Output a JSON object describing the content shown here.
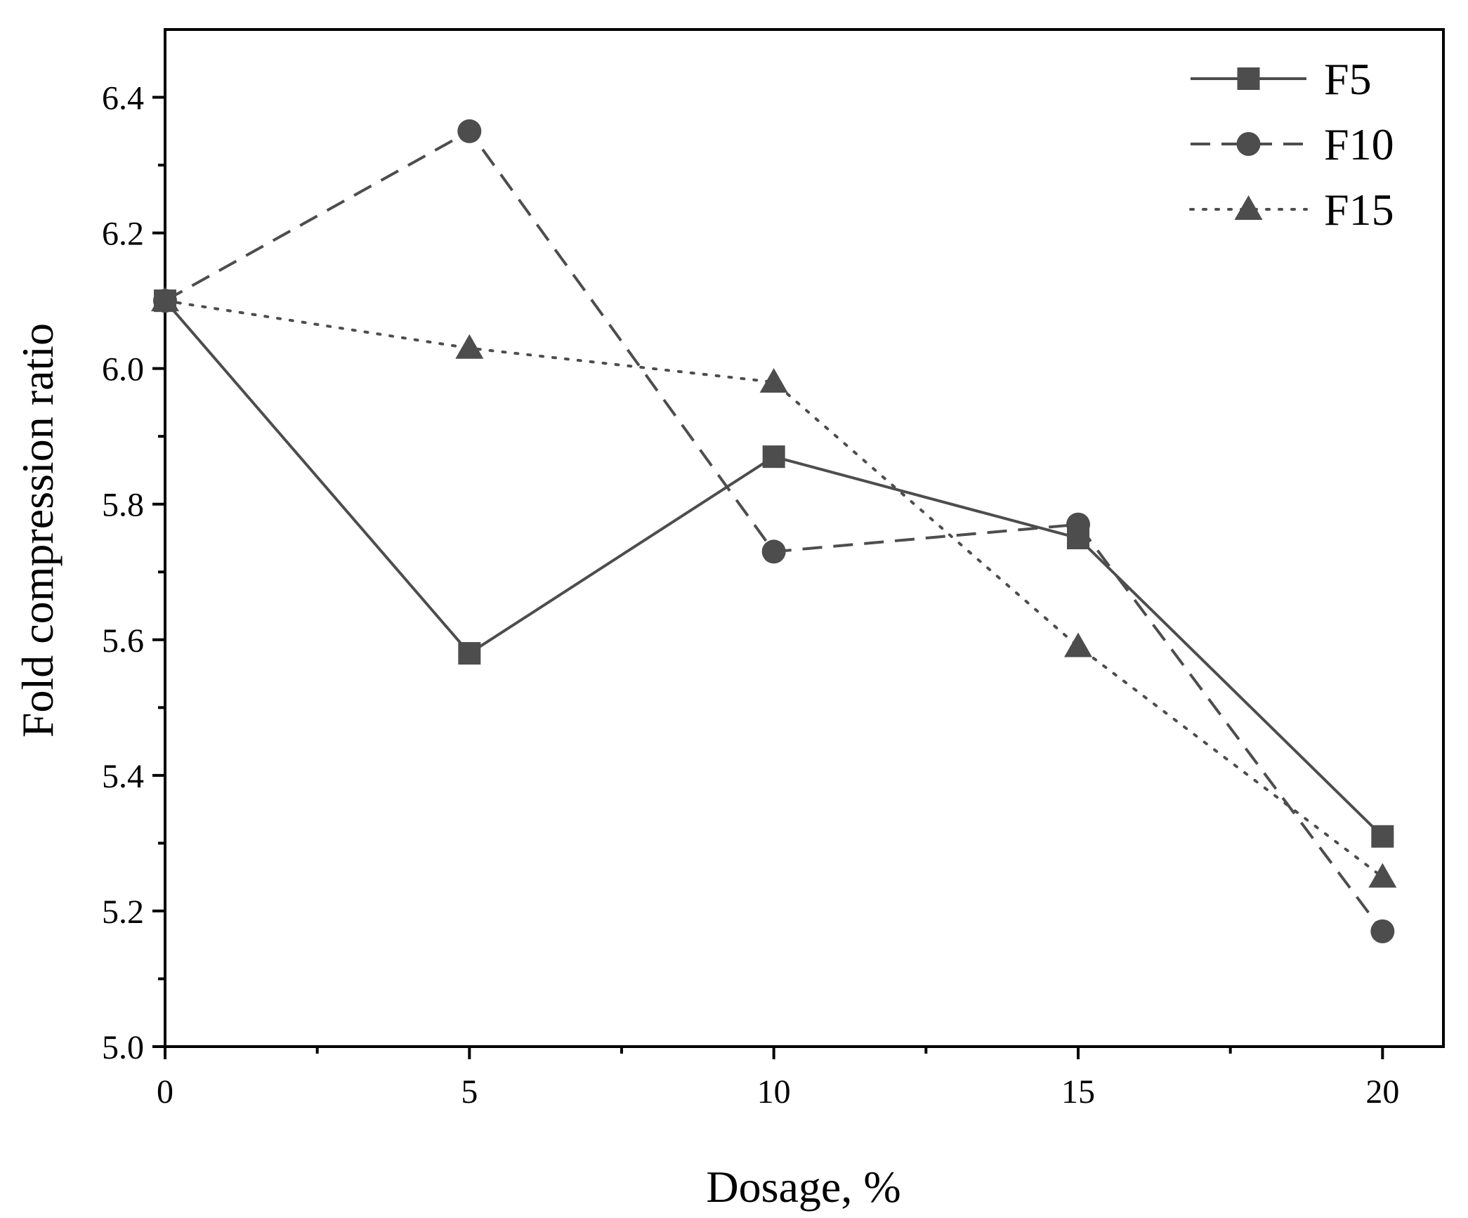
{
  "chart_data": {
    "type": "line",
    "title": "",
    "xlabel": "Dosage, %",
    "ylabel": "Fold compression ratio",
    "x": [
      0,
      5,
      10,
      15,
      20
    ],
    "xlim": [
      0,
      21
    ],
    "ylim": [
      5.0,
      6.5
    ],
    "xticks": [
      "0",
      "5",
      "10",
      "15",
      "20"
    ],
    "yticks": [
      "5.0",
      "5.2",
      "5.4",
      "5.6",
      "5.8",
      "6.0",
      "6.2",
      "6.4"
    ],
    "grid": false,
    "legend_position": "top-right",
    "series": [
      {
        "name": "F5",
        "values": [
          6.1,
          5.58,
          5.87,
          5.75,
          5.31
        ],
        "line_style": "solid",
        "marker": "square"
      },
      {
        "name": "F10",
        "values": [
          6.1,
          6.35,
          5.73,
          5.77,
          5.17
        ],
        "line_style": "dashed",
        "marker": "circle"
      },
      {
        "name": "F15",
        "values": [
          6.1,
          6.03,
          5.98,
          5.59,
          5.25
        ],
        "line_style": "dotted",
        "marker": "triangle"
      }
    ],
    "colors": {
      "series": "#4d4d4d",
      "axis": "#000000"
    }
  }
}
